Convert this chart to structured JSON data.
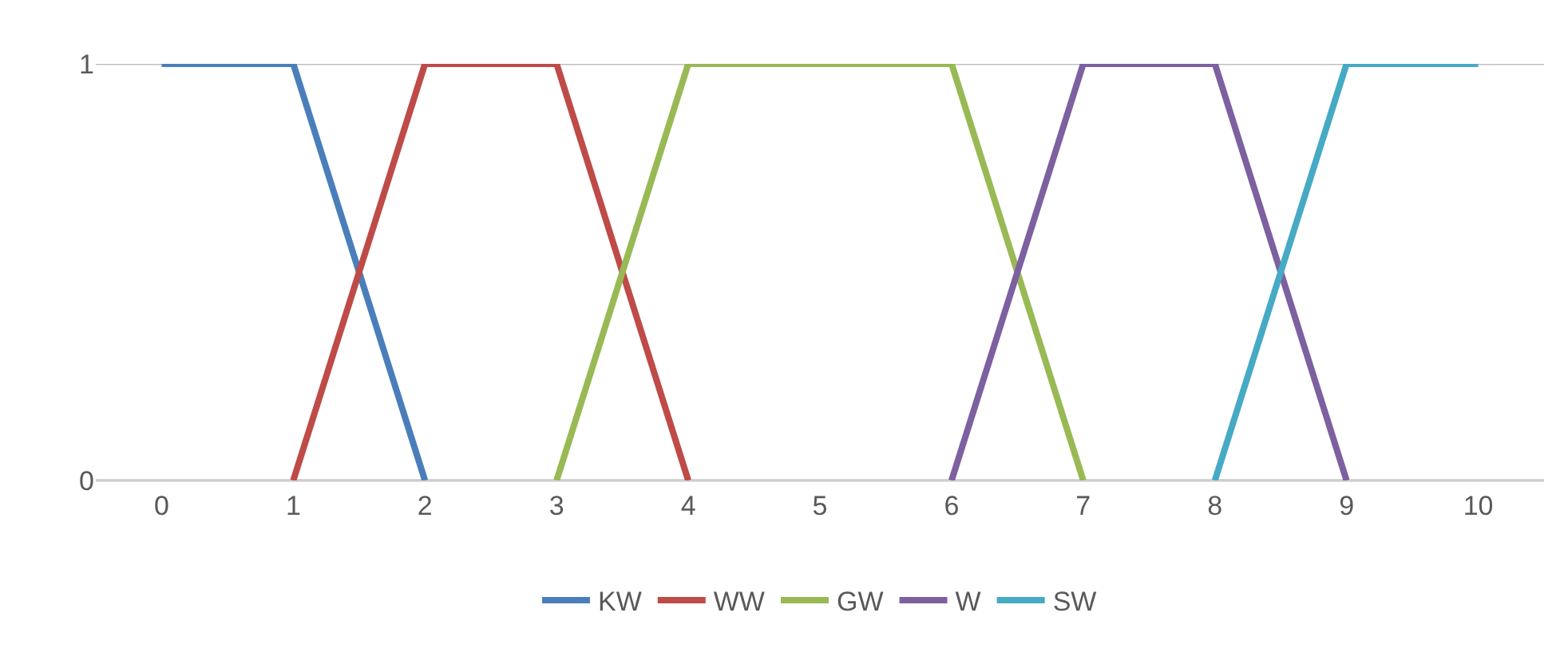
{
  "chart_data": {
    "type": "line",
    "xlim": [
      -0.5,
      10.5
    ],
    "xticks": [
      0,
      1,
      2,
      3,
      4,
      5,
      6,
      7,
      8,
      9,
      10
    ],
    "ylim": [
      0,
      1
    ],
    "yticks": [
      0,
      1
    ],
    "grid": "y",
    "legend": "bottom",
    "marker": "none",
    "line_style": "solid",
    "series": [
      {
        "name": "KW",
        "color": "#4a7ebb",
        "x": [
          0,
          1,
          2
        ],
        "values": [
          1,
          1,
          0
        ]
      },
      {
        "name": "WW",
        "color": "#be4b48",
        "x": [
          1,
          2,
          3,
          4
        ],
        "values": [
          0,
          1,
          1,
          0
        ]
      },
      {
        "name": "GW",
        "color": "#98b954",
        "x": [
          3,
          4,
          6,
          7
        ],
        "values": [
          0,
          1,
          1,
          0
        ]
      },
      {
        "name": "W",
        "color": "#7d60a0",
        "x": [
          6,
          7,
          8,
          9
        ],
        "values": [
          0,
          1,
          1,
          0
        ]
      },
      {
        "name": "SW",
        "color": "#46aac5",
        "x": [
          8,
          9,
          10
        ],
        "values": [
          0,
          1,
          1
        ]
      }
    ]
  }
}
